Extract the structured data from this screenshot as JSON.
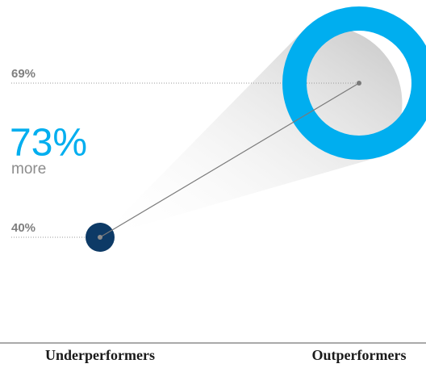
{
  "chart_data": {
    "type": "bubble-comparison",
    "categories": [
      "Underperformers",
      "Outperformers"
    ],
    "values": [
      40,
      69
    ],
    "value_labels": [
      "40%",
      "69%"
    ],
    "colors": [
      "#0d3a66",
      "#00aeef"
    ],
    "annotation": "73%",
    "annotation_sub": "more",
    "ylim": [
      40,
      69
    ]
  }
}
